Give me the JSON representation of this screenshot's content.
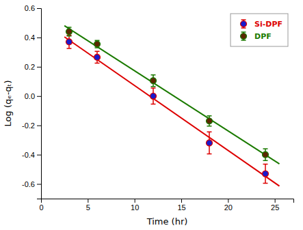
{
  "chart_data": {
    "type": "scatter",
    "xlabel": "Time (hr)",
    "ylabel": "Log (qₑ-qₜ)",
    "xlim": [
      0,
      27
    ],
    "ylim": [
      -0.7,
      0.6
    ],
    "xticks": [
      0,
      5,
      10,
      15,
      20,
      25
    ],
    "yticks": [
      -0.6,
      -0.4,
      -0.2,
      {
        "value": 0.0,
        "label": "0.0"
      },
      0.2,
      0.4,
      0.6
    ],
    "grid": false,
    "legend": "upper right",
    "series": [
      {
        "type": "line",
        "color": "#dd0000",
        "x": [
          2.5,
          25.5
        ],
        "values": [
          0.404212,
          -0.614191
        ]
      },
      {
        "type": "line",
        "color": "#1a7a00",
        "x": [
          2.5,
          25.5
        ],
        "values": [
          0.480264,
          -0.46311
        ]
      },
      {
        "type": "scatter",
        "name": "Si-DPF",
        "color": "#1a1acc",
        "marker": "circle",
        "x": [
          3,
          6,
          12,
          18,
          24
        ],
        "values": [
          0.37,
          0.265,
          0.0,
          -0.32,
          -0.53
        ],
        "errors": [
          0.045,
          0.04,
          0.055,
          0.075,
          0.065
        ]
      },
      {
        "type": "scatter",
        "name": "DPF",
        "color": "#5a2800",
        "marker": "circle",
        "x": [
          3,
          6,
          12,
          18,
          24
        ],
        "values": [
          0.44,
          0.355,
          0.105,
          -0.17,
          -0.4
        ],
        "errors": [
          0.03,
          0.025,
          0.04,
          0.035,
          0.04
        ]
      }
    ]
  }
}
